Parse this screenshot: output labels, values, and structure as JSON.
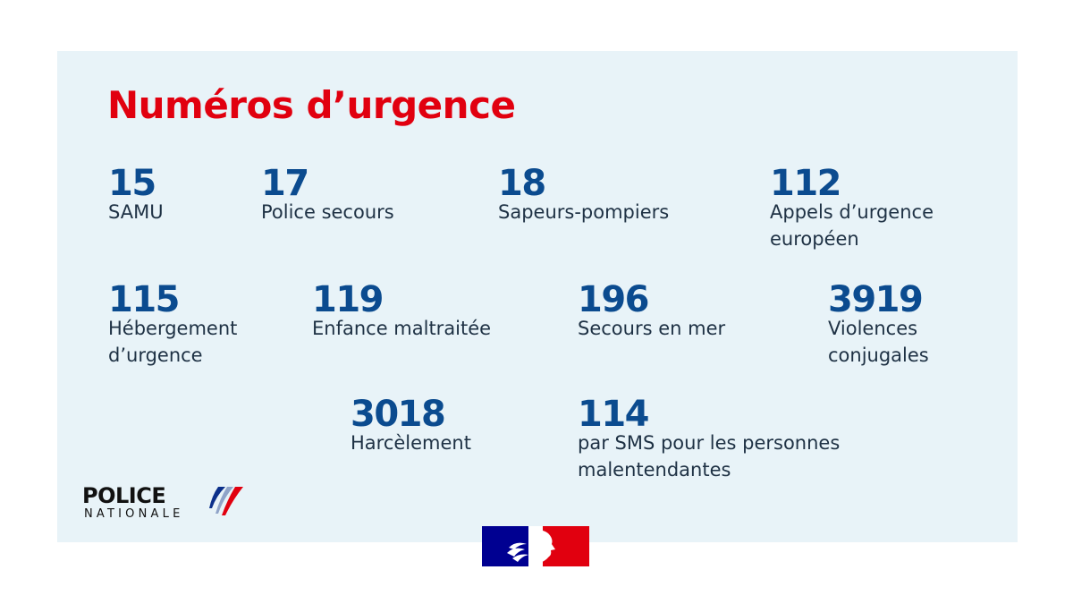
{
  "title": "Numéros d’urgence",
  "colors": {
    "title_red": "#e1000f",
    "number_blue": "#0b4b8f",
    "panel_background": "#e8f3f8",
    "flag_blue": "#000091",
    "flag_red": "#e1000f"
  },
  "numbers": [
    {
      "number": "15",
      "label": "SAMU"
    },
    {
      "number": "17",
      "label": "Police secours"
    },
    {
      "number": "18",
      "label": "Sapeurs-pompiers"
    },
    {
      "number": "112",
      "label": "Appels d’urgence européen"
    },
    {
      "number": "115",
      "label": "Hébergement d’urgence"
    },
    {
      "number": "119",
      "label": "Enfance maltraitée"
    },
    {
      "number": "196",
      "label": "Secours en mer"
    },
    {
      "number": "3919",
      "label": "Violences conjugales"
    },
    {
      "number": "3018",
      "label": "Harcèlement"
    },
    {
      "number": "114",
      "label": "par SMS pour les personnes malentendantes"
    }
  ],
  "logo": {
    "line1": "POLICE",
    "line2": "NATIONALE",
    "icon": "tricolor-stripes-icon"
  },
  "emblem": {
    "icon": "marianne-emblem-icon"
  }
}
